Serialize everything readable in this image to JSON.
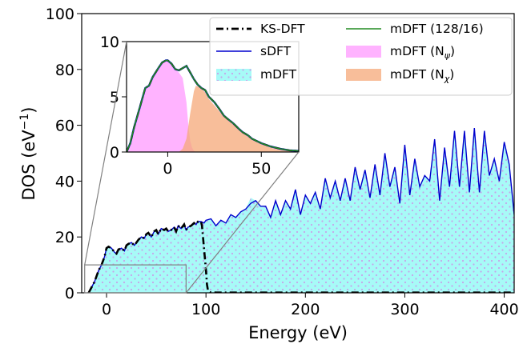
{
  "chart_data": [
    {
      "type": "area",
      "xlabel": "Energy (eV)",
      "ylabel": "DOS (eV",
      "ylabel_sup": "−1",
      "ylabel_close": ")",
      "xlim": [
        -25,
        410
      ],
      "ylim": [
        0,
        100
      ],
      "xticks": [
        0,
        100,
        200,
        300,
        400
      ],
      "yticks": [
        0,
        20,
        40,
        60,
        80,
        100
      ],
      "legend": {
        "placement": "top-right",
        "entries": [
          {
            "label": "KS-DFT",
            "style": "dash-dot",
            "color": "#000000"
          },
          {
            "label": "mDFT (128/16)",
            "style": "line",
            "color": "#228b22"
          },
          {
            "label": "sDFT",
            "style": "line",
            "color": "#0000cd"
          },
          {
            "label": "mDFT (N",
            "sub": "ψ",
            "tail": ")",
            "style": "fill",
            "color": "#ff99ff"
          },
          {
            "label": "mDFT",
            "style": "dotted-fill",
            "color": "#5ff5f0"
          },
          {
            "label": "mDFT (N",
            "sub": "χ",
            "tail": ")",
            "style": "fill",
            "color": "#f5a878"
          }
        ]
      },
      "series": [
        {
          "name": "sDFT",
          "color": "#0000cd",
          "x": [
            -18,
            -15,
            -12,
            -10,
            -8,
            -5,
            -2,
            0,
            2,
            5,
            8,
            10,
            12,
            15,
            18,
            20,
            22,
            25,
            28,
            30,
            32,
            35,
            38,
            40,
            42,
            45,
            48,
            50,
            52,
            55,
            58,
            60,
            62,
            65,
            68,
            70,
            72,
            75,
            78,
            80,
            82,
            85,
            88,
            90,
            92,
            95,
            98,
            100,
            105,
            110,
            115,
            120,
            125,
            130,
            135,
            140,
            145,
            150,
            155,
            160,
            165,
            170,
            175,
            180,
            185,
            190,
            195,
            200,
            205,
            210,
            215,
            220,
            225,
            230,
            235,
            240,
            245,
            250,
            255,
            260,
            265,
            270,
            275,
            280,
            285,
            290,
            295,
            300,
            305,
            310,
            315,
            320,
            325,
            330,
            335,
            340,
            345,
            350,
            355,
            360,
            365,
            370,
            375,
            380,
            385,
            390,
            395,
            400,
            405,
            410
          ],
          "y": [
            0,
            2,
            4,
            6,
            8,
            10,
            13,
            16,
            16.5,
            16,
            14.5,
            14,
            15.5,
            16,
            15,
            17,
            17.5,
            18,
            17,
            18,
            19,
            20,
            19.5,
            21,
            21.5,
            20,
            22,
            22.5,
            21,
            23,
            22.5,
            23,
            22,
            22.5,
            23.5,
            22,
            24,
            23,
            24.5,
            22.5,
            23.5,
            24,
            25,
            24.5,
            25.5,
            25.5,
            25,
            26,
            26.5,
            24,
            26,
            25,
            28,
            27,
            29,
            30,
            32,
            33,
            31,
            31,
            27,
            33,
            28,
            33,
            30,
            37,
            28,
            35,
            32,
            36,
            30,
            41,
            34,
            40,
            33,
            41,
            33,
            45,
            37,
            44,
            34,
            46,
            35,
            50,
            38,
            45,
            32,
            53,
            35,
            48,
            38,
            42,
            40,
            55,
            33,
            52,
            38,
            58,
            38,
            58,
            36,
            59,
            36,
            58,
            42,
            48,
            40,
            54,
            46,
            28
          ]
        },
        {
          "name": "mDFT",
          "color": "#5ff5f0",
          "x": [
            -18,
            -15,
            -12,
            -10,
            -8,
            -5,
            -2,
            0,
            2,
            5,
            8,
            10,
            12,
            15,
            18,
            20,
            22,
            25,
            28,
            30,
            32,
            35,
            38,
            40,
            42,
            45,
            48,
            50,
            52,
            55,
            58,
            60,
            62,
            65,
            68,
            70,
            72,
            75,
            78,
            80,
            82,
            85,
            88,
            90,
            92,
            95,
            98,
            100,
            105,
            110,
            115,
            120,
            125,
            130,
            135,
            140,
            145,
            150,
            155,
            160,
            165,
            170,
            175,
            180,
            185,
            190,
            195,
            200,
            205,
            210,
            215,
            220,
            225,
            230,
            235,
            240,
            245,
            250,
            255,
            260,
            265,
            270,
            275,
            280,
            285,
            290,
            295,
            300,
            305,
            310,
            315,
            320,
            325,
            330,
            335,
            340,
            345,
            350,
            355,
            360,
            365,
            370,
            375,
            380,
            385,
            390,
            395,
            400,
            405,
            410
          ],
          "y": [
            0,
            2,
            4,
            6,
            8,
            10,
            13,
            16,
            16.5,
            16,
            14.5,
            14,
            15.5,
            16,
            15,
            17,
            17.5,
            18,
            17,
            18,
            19,
            20,
            19.5,
            21,
            21.5,
            20,
            22,
            22.5,
            21,
            23,
            22.5,
            23,
            22,
            22.5,
            23.5,
            22,
            24,
            23,
            24.5,
            22.5,
            23.5,
            24,
            25,
            24.5,
            25.5,
            25.5,
            25,
            26,
            26.5,
            24,
            26,
            25,
            28,
            27,
            29,
            30,
            34,
            33,
            31,
            31,
            27,
            33,
            28,
            33,
            30,
            37,
            28,
            35,
            32,
            36,
            30,
            41,
            34,
            40,
            33,
            41,
            33,
            45,
            37,
            44,
            34,
            46,
            35,
            50,
            38,
            45,
            32,
            53,
            35,
            48,
            38,
            42,
            40,
            55,
            33,
            52,
            38,
            58,
            38,
            58,
            36,
            59,
            36,
            58,
            42,
            48,
            40,
            54,
            46,
            28
          ]
        },
        {
          "name": "KS-DFT",
          "color": "#000000",
          "x": [
            -18,
            -15,
            -12,
            -10,
            -8,
            -5,
            -2,
            0,
            2,
            5,
            8,
            10,
            12,
            15,
            18,
            20,
            22,
            25,
            28,
            30,
            32,
            35,
            38,
            40,
            42,
            45,
            48,
            50,
            52,
            55,
            58,
            60,
            62,
            65,
            68,
            70,
            72,
            75,
            78,
            80,
            82,
            85,
            88,
            90,
            92,
            95,
            96,
            98,
            100,
            101,
            102,
            104,
            110,
            150,
            200,
            250,
            300,
            350,
            400,
            410
          ],
          "y": [
            0,
            2,
            4,
            6,
            8,
            10,
            13,
            16,
            16.5,
            16,
            14.5,
            14,
            15.5,
            16,
            15,
            17,
            17.5,
            18,
            17,
            18,
            19,
            20,
            19.5,
            21,
            21.5,
            20,
            22,
            22.5,
            21,
            23,
            22.5,
            23,
            22,
            22.5,
            23.5,
            22,
            24,
            23,
            24.5,
            22.5,
            23.5,
            24,
            25,
            24.5,
            25.5,
            25.5,
            24,
            16,
            8,
            3,
            0.8,
            0.2,
            0.1,
            0.1,
            0.1,
            0.1,
            0.1,
            0.1,
            0.1,
            0.1
          ]
        }
      ]
    },
    {
      "type": "area",
      "xlim": [
        -22,
        70
      ],
      "ylim": [
        0,
        10
      ],
      "xticks": [
        0,
        50
      ],
      "yticks": [
        0,
        5,
        10
      ],
      "zoom_region": {
        "x": [
          -22,
          80
        ],
        "y": [
          0,
          10
        ]
      },
      "series": [
        {
          "name": "mDFT (N_ψ)",
          "color": "#ff99ff",
          "x": [
            -22,
            -20,
            -18,
            -15,
            -12,
            -10,
            -8,
            -5,
            -3,
            -1,
            0,
            2,
            4,
            6,
            8,
            10,
            11,
            12,
            13,
            14,
            15
          ],
          "y": [
            0,
            0.8,
            2.2,
            4.0,
            5.8,
            6.0,
            6.8,
            7.6,
            8.1,
            8.3,
            8.3,
            8.0,
            7.5,
            7.2,
            6.7,
            4.5,
            2.5,
            1.0,
            0.4,
            0.1,
            0
          ]
        },
        {
          "name": "mDFT (N_χ)",
          "color": "#f5a878",
          "x": [
            6,
            8,
            10,
            12,
            14,
            15,
            17,
            20,
            22,
            25,
            28,
            30,
            32,
            35,
            38,
            40,
            43,
            45,
            50,
            55,
            60,
            65,
            70
          ],
          "y": [
            0,
            0.3,
            1.2,
            3.5,
            5.5,
            6.0,
            5.9,
            5.4,
            4.8,
            4.2,
            3.6,
            3.2,
            2.9,
            2.5,
            2.0,
            1.7,
            1.4,
            1.1,
            0.7,
            0.4,
            0.2,
            0.1,
            0.05
          ]
        },
        {
          "name": "sDFT",
          "color": "#0000cd",
          "x": [
            -22,
            -20,
            -18,
            -15,
            -12,
            -10,
            -8,
            -5,
            -3,
            -1,
            0,
            2,
            4,
            6,
            8,
            10,
            12,
            14,
            16,
            18,
            20,
            22,
            25,
            28,
            30,
            32,
            35,
            38,
            40,
            43,
            45,
            50,
            55,
            60,
            65,
            70
          ],
          "y": [
            0,
            0.8,
            2.2,
            4.0,
            5.8,
            6.0,
            6.8,
            7.6,
            8.1,
            8.3,
            8.3,
            8.0,
            7.5,
            7.4,
            7.6,
            7.8,
            7.2,
            6.6,
            6.1,
            5.8,
            5.6,
            5.0,
            4.5,
            3.8,
            3.3,
            3.0,
            2.6,
            2.1,
            1.8,
            1.5,
            1.2,
            0.8,
            0.5,
            0.3,
            0.15,
            0.1
          ]
        },
        {
          "name": "mDFT (128/16)",
          "color": "#228b22",
          "x": [
            -22,
            -20,
            -18,
            -15,
            -12,
            -10,
            -8,
            -5,
            -3,
            -1,
            0,
            2,
            4,
            6,
            8,
            10,
            12,
            14,
            16,
            18,
            20,
            22,
            25,
            28,
            30,
            32,
            35,
            38,
            40,
            43,
            45,
            50,
            55,
            60,
            65,
            70
          ],
          "y": [
            0,
            0.8,
            2.2,
            4.0,
            5.8,
            6.0,
            6.8,
            7.6,
            8.1,
            8.3,
            8.3,
            8.0,
            7.5,
            7.4,
            7.6,
            7.8,
            7.2,
            6.6,
            6.1,
            5.8,
            5.6,
            5.0,
            4.5,
            3.8,
            3.3,
            3.0,
            2.6,
            2.1,
            1.8,
            1.5,
            1.2,
            0.8,
            0.5,
            0.3,
            0.15,
            0.1
          ]
        },
        {
          "name": "KS-DFT",
          "color": "#000000",
          "x": [
            -22,
            -20,
            -18,
            -15,
            -12,
            -10,
            -8,
            -5,
            -3,
            -1,
            0,
            2,
            4,
            6,
            8,
            10,
            12,
            14,
            16,
            18,
            20,
            22,
            25,
            28,
            30,
            32,
            35,
            38,
            40,
            43,
            45,
            50,
            55,
            60,
            65,
            70
          ],
          "y": [
            0,
            0.8,
            2.2,
            4.0,
            5.8,
            6.0,
            6.8,
            7.6,
            8.1,
            8.3,
            8.3,
            8.0,
            7.5,
            7.4,
            7.6,
            7.8,
            7.2,
            6.6,
            6.1,
            5.8,
            5.6,
            5.0,
            4.5,
            3.8,
            3.3,
            3.0,
            2.6,
            2.1,
            1.8,
            1.5,
            1.2,
            0.8,
            0.5,
            0.3,
            0.15,
            0.1
          ]
        }
      ]
    }
  ]
}
